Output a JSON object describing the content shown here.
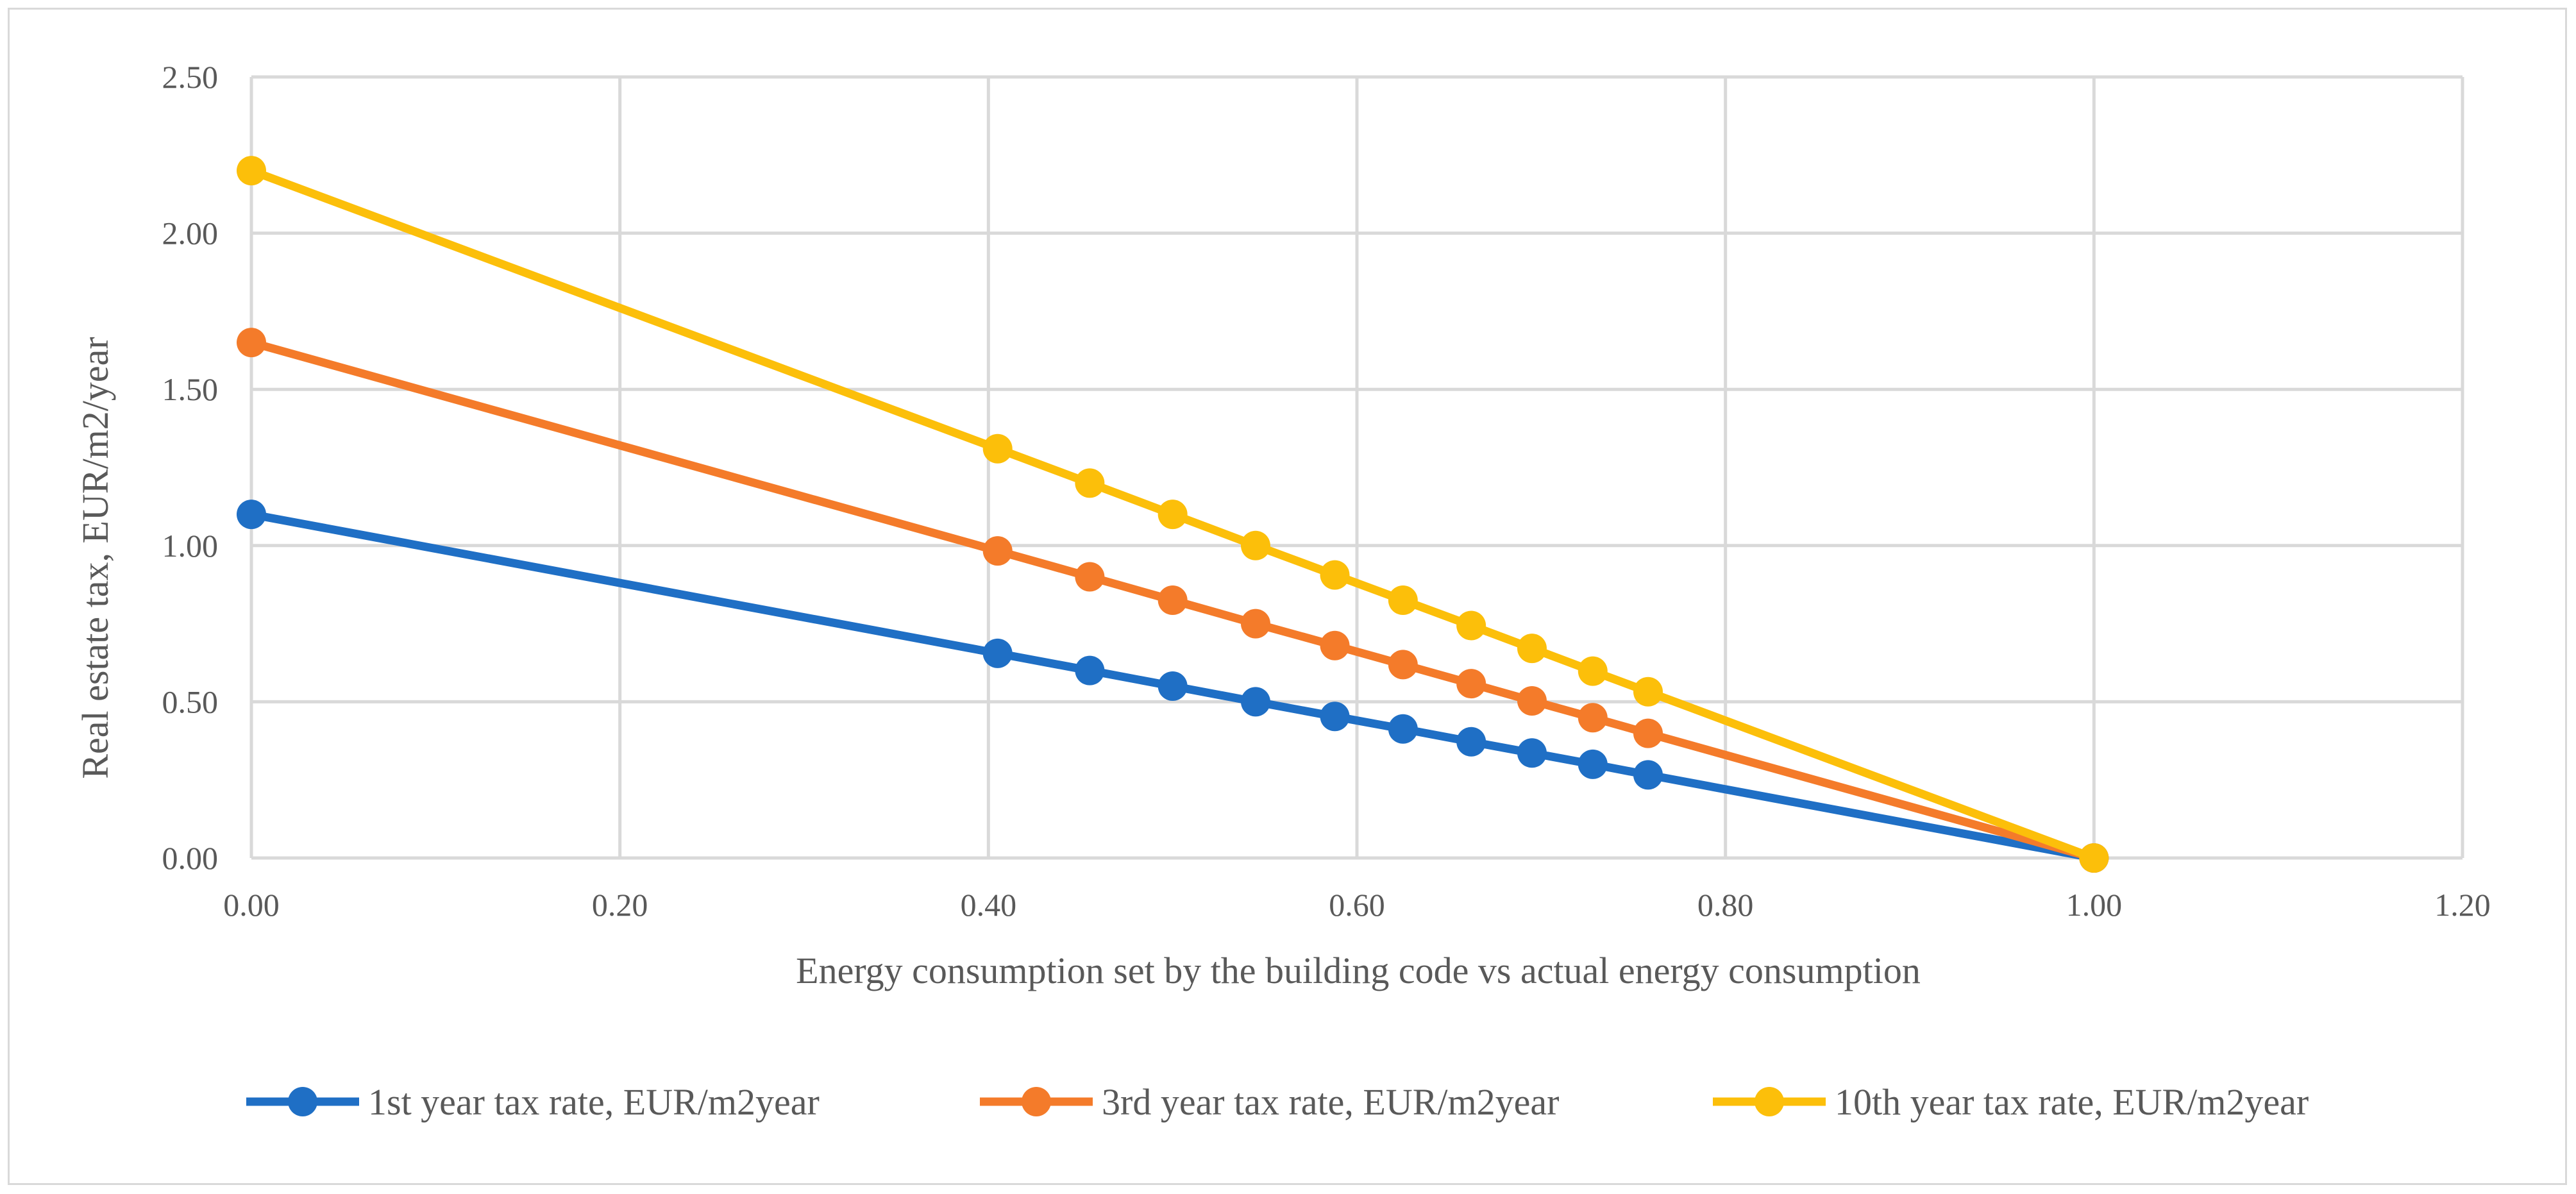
{
  "chart_data": {
    "type": "line",
    "title": "",
    "xlabel": "Energy consumption set by the building code vs actual energy consumption",
    "ylabel": "Real estate tax, EUR/m2/year",
    "xlim": [
      0,
      1.2
    ],
    "ylim": [
      0,
      2.5
    ],
    "xticks": [
      0,
      0.2,
      0.4,
      0.6,
      0.8,
      1.0,
      1.2
    ],
    "yticks": [
      0,
      0.5,
      1.0,
      1.5,
      2.0,
      2.5
    ],
    "xtick_labels": [
      "0.00",
      "0.20",
      "0.40",
      "0.60",
      "0.80",
      "1.00",
      "1.20"
    ],
    "ytick_labels": [
      "0.00",
      "0.50",
      "1.00",
      "1.50",
      "2.00",
      "2.50"
    ],
    "grid": true,
    "legend_position": "bottom",
    "series": [
      {
        "name": "1st year tax rate, EUR/m2year",
        "color": "#1f6fc5",
        "x": [
          0,
          0.405,
          0.455,
          0.5,
          0.545,
          0.588,
          0.625,
          0.662,
          0.695,
          0.728,
          0.758,
          1.0
        ],
        "y": [
          1.1,
          0.655,
          0.6,
          0.55,
          0.5,
          0.453,
          0.413,
          0.372,
          0.336,
          0.3,
          0.266,
          0.0
        ]
      },
      {
        "name": "3rd year tax rate, EUR/m2year",
        "color": "#f47b2a",
        "x": [
          0,
          0.405,
          0.455,
          0.5,
          0.545,
          0.588,
          0.625,
          0.662,
          0.695,
          0.728,
          0.758,
          1.0
        ],
        "y": [
          1.65,
          0.983,
          0.9,
          0.825,
          0.75,
          0.68,
          0.619,
          0.558,
          0.503,
          0.449,
          0.399,
          0.0
        ]
      },
      {
        "name": "10th year tax rate, EUR/m2year",
        "color": "#fcbf0a",
        "x": [
          0,
          0.405,
          0.455,
          0.5,
          0.545,
          0.588,
          0.625,
          0.662,
          0.695,
          0.728,
          0.758,
          1.0
        ],
        "y": [
          2.2,
          1.31,
          1.2,
          1.1,
          1.0,
          0.906,
          0.825,
          0.744,
          0.671,
          0.598,
          0.532,
          0.0
        ]
      }
    ]
  }
}
